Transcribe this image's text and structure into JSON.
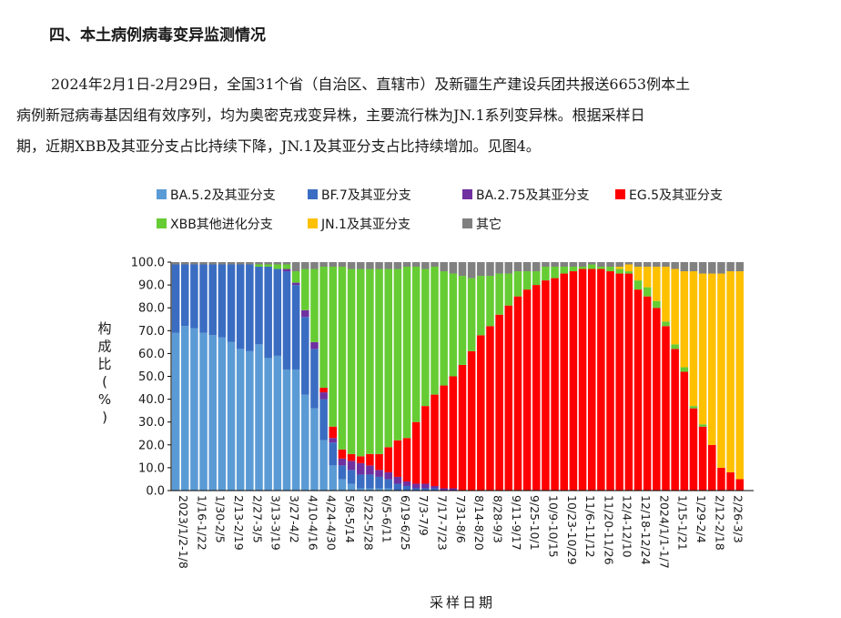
{
  "heading": "四、本土病例病毒变异监测情况",
  "paragraph": {
    "line1": "2024年2月1日-2月29日，全国31个省（自治区、直辖市）及新疆生产建设兵团共报送6653例本土",
    "line2": "病例新冠病毒基因组有效序列，均为奥密克戎变异株，主要流行株为JN.1系列变异株。根据采样日",
    "line3": "期，近期XBB及其亚分支占比持续下降，JN.1及其亚分支占比持续增加。见图4。"
  },
  "chart_data": {
    "type": "bar",
    "stacked": true,
    "xlabel": "采样日期",
    "ylabel_chars": [
      "构",
      "成",
      "比",
      "(",
      "%",
      ")"
    ],
    "ylim": [
      0,
      100
    ],
    "yticks": [
      "0.0",
      "10.0",
      "20.0",
      "30.0",
      "40.0",
      "50.0",
      "60.0",
      "70.0",
      "80.0",
      "90.0",
      "100.0"
    ],
    "xtick_labels": [
      "2023/1/2-1/8",
      "1/16-1/22",
      "1/30-2/5",
      "2/13-2/19",
      "2/27-3/5",
      "3/13-3/19",
      "3/27-4/2",
      "4/10-4/16",
      "4/24-4/30",
      "5/8-5/14",
      "5/22-5/28",
      "6/5-6/11",
      "6/19-6/25",
      "7/3-7/9",
      "7/17-7/23",
      "7/31-8/6",
      "8/14-8/20",
      "8/28-9/3",
      "9/11-9/17",
      "9/25-10/1",
      "10/9-10/15",
      "10/23-10/29",
      "11/6-11/12",
      "11/20-11/26",
      "12/4-12/10",
      "12/18-12/24",
      "2024/1/1-1/7",
      "1/15-1/21",
      "1/29-2/4",
      "2/12-2/18",
      "2/26-3/3"
    ],
    "legend": [
      {
        "name": "BA.5.2及其亚分支",
        "color": "#5b9bd5"
      },
      {
        "name": "BF.7及其亚分支",
        "color": "#3a6dc2"
      },
      {
        "name": "BA.2.75及其亚分支",
        "color": "#7030a0"
      },
      {
        "name": "EG.5及其亚分支",
        "color": "#ff0000"
      },
      {
        "name": "XBB其他进化分支",
        "color": "#66cc33"
      },
      {
        "name": "JN.1及其亚分支",
        "color": "#ffc000"
      },
      {
        "name": "其它",
        "color": "#808080"
      }
    ],
    "series": [
      {
        "name": "BA.5.2及其亚分支",
        "color": "#5b9bd5",
        "values": [
          69,
          72,
          71,
          69,
          68,
          67,
          65,
          62,
          61,
          64,
          58,
          59,
          53,
          53,
          42,
          36,
          22,
          11,
          5,
          3,
          1,
          1,
          1,
          1,
          0,
          0,
          0,
          0,
          0,
          0,
          0,
          0,
          0,
          0,
          0,
          0,
          0,
          0,
          0,
          0,
          0,
          0,
          0,
          0,
          0,
          0,
          0,
          0,
          0,
          0,
          0,
          0,
          0,
          0,
          0,
          0,
          0,
          0,
          0,
          0,
          0,
          0,
          0
        ]
      },
      {
        "name": "BF.7及其亚分支",
        "color": "#3a6dc2",
        "values": [
          30,
          27,
          28,
          30,
          31,
          32,
          34,
          37,
          38,
          34,
          40,
          38,
          43,
          37,
          34,
          26,
          18,
          10,
          6,
          6,
          6,
          6,
          5,
          4,
          3,
          2,
          1,
          1,
          1,
          0,
          0,
          0,
          0,
          0,
          0,
          0,
          0,
          0,
          0,
          0,
          0,
          0,
          0,
          0,
          0,
          0,
          0,
          0,
          0,
          0,
          0,
          0,
          0,
          0,
          0,
          0,
          0,
          0,
          0,
          0,
          0,
          0,
          0
        ]
      },
      {
        "name": "BA.2.75及其亚分支",
        "color": "#7030a0",
        "values": [
          0,
          0,
          0,
          0,
          0,
          0,
          0,
          0,
          0,
          0,
          0,
          0,
          1,
          1,
          3,
          3,
          3,
          2,
          3,
          4,
          5,
          4,
          3,
          3,
          3,
          2,
          2,
          2,
          1,
          1,
          1,
          0,
          0,
          0,
          0,
          0,
          0,
          0,
          0,
          0,
          0,
          0,
          0,
          0,
          0,
          0,
          0,
          0,
          0,
          0,
          0,
          0,
          0,
          0,
          0,
          0,
          0,
          0,
          0,
          0,
          0,
          0,
          0
        ]
      },
      {
        "name": "EG.5及其亚分支",
        "color": "#ff0000",
        "values": [
          0,
          0,
          0,
          0,
          0,
          0,
          0,
          0,
          0,
          0,
          0,
          0,
          0,
          0,
          0,
          0,
          2,
          5,
          4,
          3,
          3,
          5,
          7,
          11,
          16,
          19,
          27,
          34,
          40,
          45,
          49,
          55,
          61,
          68,
          72,
          77,
          81,
          85,
          88,
          90,
          92,
          93,
          95,
          96,
          97,
          97,
          97,
          96,
          95,
          95,
          88,
          85,
          80,
          72,
          62,
          52,
          36,
          28,
          20,
          10,
          8,
          5,
          0
        ]
      },
      {
        "name": "XBB其他进化分支",
        "color": "#66cc33",
        "values": [
          0,
          0,
          0,
          0,
          0,
          0,
          0,
          0,
          0,
          1,
          1,
          2,
          2,
          5,
          18,
          32,
          53,
          70,
          80,
          81,
          82,
          81,
          81,
          78,
          75,
          75,
          68,
          60,
          56,
          50,
          45,
          39,
          32,
          26,
          22,
          18,
          14,
          11,
          8,
          6,
          6,
          5,
          3,
          2,
          1,
          2,
          1,
          2,
          2,
          1,
          4,
          4,
          3,
          2,
          2,
          2,
          1,
          1,
          0,
          0,
          0,
          0,
          0
        ]
      },
      {
        "name": "JN.1及其亚分支",
        "color": "#ffc000",
        "values": [
          0,
          0,
          0,
          0,
          0,
          0,
          0,
          0,
          0,
          0,
          0,
          0,
          0,
          0,
          0,
          0,
          0,
          0,
          0,
          0,
          0,
          0,
          0,
          0,
          0,
          0,
          0,
          0,
          0,
          0,
          0,
          0,
          0,
          0,
          0,
          0,
          0,
          0,
          0,
          0,
          0,
          0,
          0,
          0,
          0,
          0,
          0,
          0,
          1,
          3,
          6,
          9,
          15,
          24,
          33,
          42,
          59,
          66,
          75,
          85,
          88,
          91,
          0
        ]
      },
      {
        "name": "其它",
        "color": "#808080",
        "values": [
          1,
          1,
          1,
          1,
          1,
          1,
          1,
          1,
          1,
          1,
          1,
          1,
          1,
          4,
          3,
          3,
          2,
          2,
          2,
          3,
          3,
          3,
          3,
          3,
          3,
          2,
          2,
          3,
          2,
          4,
          5,
          6,
          7,
          6,
          6,
          5,
          5,
          4,
          4,
          4,
          2,
          2,
          2,
          2,
          2,
          1,
          2,
          2,
          2,
          1,
          2,
          2,
          2,
          2,
          3,
          4,
          4,
          5,
          5,
          5,
          4,
          4,
          0
        ]
      }
    ]
  }
}
